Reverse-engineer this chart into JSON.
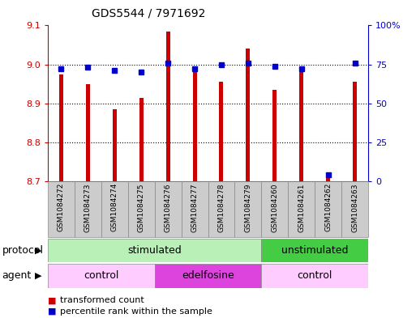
{
  "title": "GDS5544 / 7971692",
  "samples": [
    "GSM1084272",
    "GSM1084273",
    "GSM1084274",
    "GSM1084275",
    "GSM1084276",
    "GSM1084277",
    "GSM1084278",
    "GSM1084279",
    "GSM1084260",
    "GSM1084261",
    "GSM1084262",
    "GSM1084263"
  ],
  "transformed_count": [
    8.975,
    8.95,
    8.885,
    8.915,
    9.085,
    8.985,
    8.955,
    9.04,
    8.935,
    8.99,
    8.71,
    8.955
  ],
  "percentile_rank": [
    72,
    73,
    71,
    70,
    76,
    72,
    75,
    76,
    74,
    72,
    4,
    76
  ],
  "ylim_left": [
    8.7,
    9.1
  ],
  "ylim_right": [
    0,
    100
  ],
  "yticks_left": [
    8.7,
    8.8,
    8.9,
    9.0,
    9.1
  ],
  "yticks_right": [
    0,
    25,
    50,
    75,
    100
  ],
  "ytick_labels_right": [
    "0",
    "25",
    "50",
    "75",
    "100%"
  ],
  "bar_color": "#cc0000",
  "dot_color": "#0000cc",
  "bg_color": "#ffffff",
  "protocol_groups": [
    {
      "label": "stimulated",
      "start": 0,
      "end": 7,
      "color": "#b8f0b8"
    },
    {
      "label": "unstimulated",
      "start": 8,
      "end": 11,
      "color": "#44cc44"
    }
  ],
  "agent_groups": [
    {
      "label": "control",
      "start": 0,
      "end": 3,
      "color": "#ffccff"
    },
    {
      "label": "edelfosine",
      "start": 4,
      "end": 7,
      "color": "#dd44dd"
    },
    {
      "label": "control",
      "start": 8,
      "end": 11,
      "color": "#ffccff"
    }
  ],
  "legend_items": [
    {
      "label": "transformed count",
      "color": "#cc0000"
    },
    {
      "label": "percentile rank within the sample",
      "color": "#0000cc"
    }
  ],
  "protocol_label": "protocol",
  "agent_label": "agent",
  "sample_box_color": "#cccccc",
  "bar_width": 0.15
}
